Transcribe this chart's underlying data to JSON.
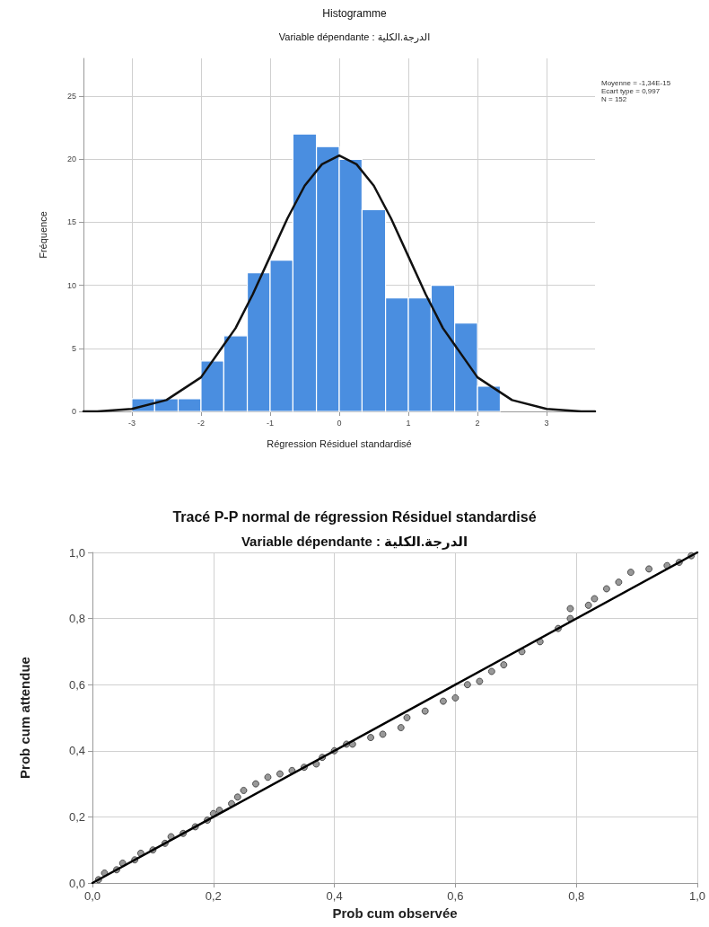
{
  "chart_data": [
    {
      "type": "histogram",
      "title": "Histogramme",
      "subtitle": "Variable dépendante : الدرجة.الكلية",
      "xlabel": "Régression Résiduel standardisé",
      "ylabel": "Fréquence",
      "annotations": [
        "Moyenne = -1,34E-15",
        "Ecart type = 0,997",
        "N = 152"
      ],
      "xlim": [
        -3.7,
        3.7
      ],
      "xticks": [
        -3,
        -2,
        -1,
        0,
        1,
        2,
        3
      ],
      "ylim": [
        0,
        28
      ],
      "yticks": [
        0,
        5,
        10,
        15,
        20,
        25
      ],
      "grid": true,
      "series": [
        {
          "color": "#4a8ee0",
          "bins": [
            -3,
            -2.67,
            -2.33,
            -2,
            -1.67,
            -1.33,
            -1,
            -0.67,
            -0.33,
            0,
            0.33,
            0.67,
            1,
            1.33,
            1.67,
            2,
            2.33
          ],
          "values": [
            1,
            1,
            1,
            4,
            6,
            11,
            12,
            22,
            21,
            20,
            16,
            9,
            9,
            10,
            7,
            2
          ]
        },
        {
          "type": "line",
          "color": "#111111",
          "x": [
            -3.7,
            -3.5,
            -3,
            -2.5,
            -2,
            -1.5,
            -1.25,
            -1,
            -0.75,
            -0.5,
            -0.25,
            0,
            0.25,
            0.5,
            0.75,
            1,
            1.25,
            1.5,
            2,
            2.5,
            3,
            3.5,
            3.7
          ],
          "values": [
            0.0,
            0.0,
            0.2,
            0.9,
            2.7,
            6.6,
            9.3,
            12.3,
            15.3,
            17.9,
            19.6,
            20.3,
            19.6,
            17.9,
            15.3,
            12.3,
            9.3,
            6.6,
            2.7,
            0.9,
            0.2,
            0.0,
            0.0
          ]
        }
      ]
    },
    {
      "type": "scatter",
      "title": "Tracé P-P normal de régression Résiduel standardisé",
      "subtitle": "Variable dépendante : الدرجة.الكلية",
      "xlabel": "Prob cum observée",
      "ylabel": "Prob cum attendue",
      "xlim": [
        0,
        1
      ],
      "xticks": [
        {
          "value": 0,
          "label": "0,0"
        },
        {
          "value": 0.2,
          "label": "0,2"
        },
        {
          "value": 0.4,
          "label": "0,4"
        },
        {
          "value": 0.6,
          "label": "0,6"
        },
        {
          "value": 0.8,
          "label": "0,8"
        },
        {
          "value": 1,
          "label": "1,0"
        }
      ],
      "ylim": [
        0,
        1
      ],
      "yticks": [
        {
          "value": 0,
          "label": "0,0"
        },
        {
          "value": 0.2,
          "label": "0,2"
        },
        {
          "value": 0.4,
          "label": "0,4"
        },
        {
          "value": 0.6,
          "label": "0,6"
        },
        {
          "value": 0.8,
          "label": "0,8"
        },
        {
          "value": 1,
          "label": "1,0"
        }
      ],
      "grid": true,
      "series": [
        {
          "marker": "circle",
          "color": "#7f7f7f",
          "x": [
            0.01,
            0.02,
            0.04,
            0.05,
            0.07,
            0.08,
            0.1,
            0.12,
            0.13,
            0.15,
            0.17,
            0.19,
            0.2,
            0.21,
            0.23,
            0.24,
            0.25,
            0.27,
            0.29,
            0.31,
            0.33,
            0.35,
            0.37,
            0.38,
            0.4,
            0.42,
            0.43,
            0.46,
            0.48,
            0.51,
            0.52,
            0.55,
            0.58,
            0.6,
            0.62,
            0.64,
            0.66,
            0.68,
            0.71,
            0.74,
            0.77,
            0.79,
            0.79,
            0.82,
            0.83,
            0.85,
            0.87,
            0.89,
            0.92,
            0.95,
            0.97,
            0.99
          ],
          "values": [
            0.01,
            0.03,
            0.04,
            0.06,
            0.07,
            0.09,
            0.1,
            0.12,
            0.14,
            0.15,
            0.17,
            0.19,
            0.21,
            0.22,
            0.24,
            0.26,
            0.28,
            0.3,
            0.32,
            0.33,
            0.34,
            0.35,
            0.36,
            0.38,
            0.4,
            0.42,
            0.42,
            0.44,
            0.45,
            0.47,
            0.5,
            0.52,
            0.55,
            0.56,
            0.6,
            0.61,
            0.64,
            0.66,
            0.7,
            0.73,
            0.77,
            0.8,
            0.83,
            0.84,
            0.86,
            0.89,
            0.91,
            0.94,
            0.95,
            0.96,
            0.97,
            0.99
          ]
        },
        {
          "type": "line",
          "color": "#000000",
          "x": [
            0,
            1
          ],
          "values": [
            0,
            1
          ]
        }
      ]
    }
  ]
}
